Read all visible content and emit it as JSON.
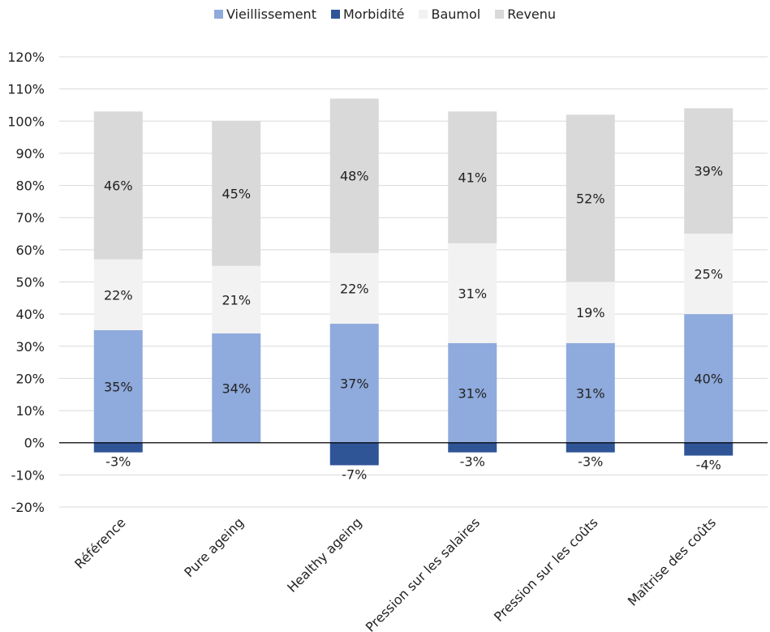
{
  "chart_data": {
    "type": "bar",
    "stacked": true,
    "categories": [
      "Référence",
      "Pure ageing",
      "Healthy ageing",
      "Pression sur les salaires",
      "Pression sur les coûts",
      "Maîtrise des coûts"
    ],
    "series": [
      {
        "name": "Vieillissement",
        "color": "#8faadc",
        "values": [
          35,
          34,
          37,
          31,
          31,
          40
        ],
        "labels": [
          "35%",
          "34%",
          "37%",
          "31%",
          "31%",
          "40%"
        ]
      },
      {
        "name": "Morbidité",
        "color": "#2f5597",
        "values": [
          -3,
          0,
          -7,
          -3,
          -3,
          -4
        ],
        "labels": [
          "-3%",
          "",
          "-7%",
          "-3%",
          "-3%",
          "-4%"
        ]
      },
      {
        "name": "Baumol",
        "color": "#f2f2f2",
        "values": [
          22,
          21,
          22,
          31,
          19,
          25
        ],
        "labels": [
          "22%",
          "21%",
          "22%",
          "31%",
          "19%",
          "25%"
        ]
      },
      {
        "name": "Revenu",
        "color": "#d9d9d9",
        "values": [
          46,
          45,
          48,
          41,
          52,
          39
        ],
        "labels": [
          "46%",
          "45%",
          "48%",
          "41%",
          "52%",
          "39%"
        ]
      }
    ],
    "ylim": [
      -20,
      120
    ],
    "yticks": [
      -20,
      -10,
      0,
      10,
      20,
      30,
      40,
      50,
      60,
      70,
      80,
      90,
      100,
      110,
      120
    ],
    "ytick_labels": [
      "-20%",
      "-10%",
      "0%",
      "10%",
      "20%",
      "30%",
      "40%",
      "50%",
      "60%",
      "70%",
      "80%",
      "90%",
      "100%",
      "110%",
      "120%"
    ],
    "grid": true,
    "legend_position": "top-center"
  }
}
